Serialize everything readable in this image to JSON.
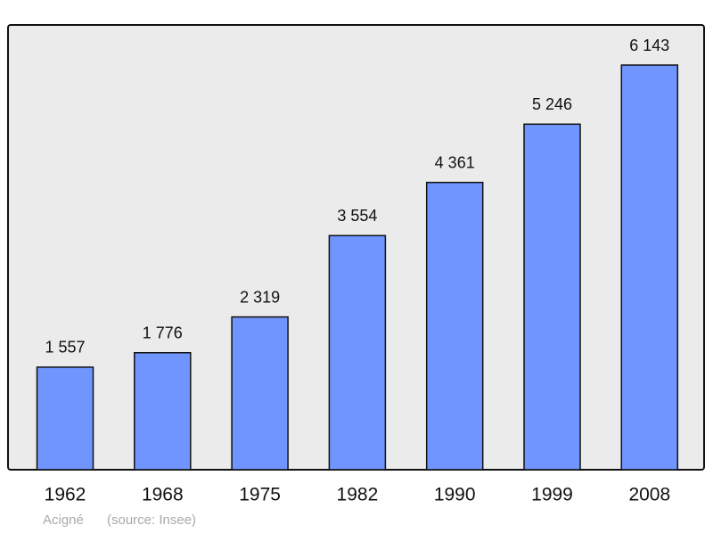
{
  "chart_data": {
    "type": "bar",
    "categories": [
      "1962",
      "1968",
      "1975",
      "1982",
      "1990",
      "1999",
      "2008"
    ],
    "values": [
      1557,
      1776,
      2319,
      3554,
      4361,
      5246,
      6143
    ],
    "value_labels": [
      "1 557",
      "1 776",
      "2 319",
      "3 554",
      "4 361",
      "5 246",
      "6 143"
    ],
    "color": "#7095ff",
    "caption": "Acigné",
    "source": "(source: Insee)"
  }
}
